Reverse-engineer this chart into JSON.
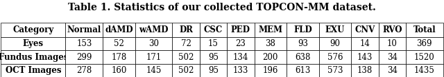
{
  "title": "Table 1. Statistics of our collected TOPCON-MM dataset.",
  "columns": [
    "Category",
    "Normal",
    "dAMD",
    "wAMD",
    "DR",
    "CSC",
    "PED",
    "MEM",
    "FLD",
    "EXU",
    "CNV",
    "RVO",
    "Total"
  ],
  "rows": [
    [
      "Eyes",
      "153",
      "52",
      "30",
      "72",
      "15",
      "23",
      "38",
      "93",
      "90",
      "14",
      "10",
      "369"
    ],
    [
      "Fundus Images",
      "299",
      "178",
      "171",
      "502",
      "95",
      "134",
      "200",
      "638",
      "576",
      "143",
      "34",
      "1520"
    ],
    [
      "OCT Images",
      "278",
      "160",
      "145",
      "502",
      "95",
      "133",
      "196",
      "613",
      "573",
      "138",
      "34",
      "1435"
    ]
  ],
  "bold_rows": [
    1,
    2
  ],
  "header_bg": "#ffffff",
  "row_bg_odd": "#ffffff",
  "row_bg_even": "#e8e8e8",
  "title_fontsize": 10,
  "table_fontsize": 8.5
}
